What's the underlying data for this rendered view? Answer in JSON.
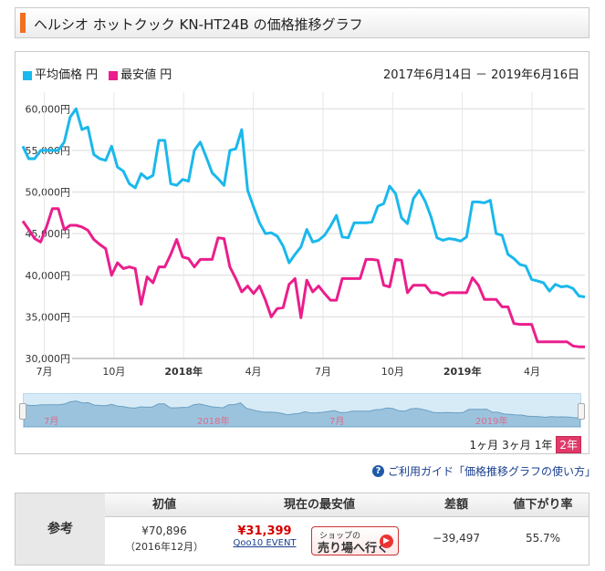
{
  "header": {
    "title": "ヘルシオ ホットクック KN-HT24B の価格推移グラフ"
  },
  "legend": {
    "avg_label": "平均価格 円",
    "min_label": "最安値 円"
  },
  "date_range": "2017年6月14日 － 2019年6月16日",
  "colors": {
    "avg": "#1ab8ec",
    "min": "#ea1e8c",
    "accent": "#f26f21"
  },
  "chart_data": {
    "type": "line",
    "x_ticks": [
      "7月",
      "10月",
      "2018年",
      "4月",
      "7月",
      "10月",
      "2019年",
      "4月"
    ],
    "y_ticks": [
      "60,000円",
      "55,000円",
      "50,000円",
      "45,000円",
      "40,000円",
      "35,000円",
      "30,000円"
    ],
    "ylim": [
      30000,
      62000
    ],
    "grid": true,
    "series": [
      {
        "name": "平均価格",
        "values": [
          55500,
          54000,
          54000,
          55000,
          55000,
          55000,
          55000,
          56000,
          59000,
          60000,
          57500,
          57800,
          54500,
          54000,
          53800,
          55500,
          53000,
          52500,
          51000,
          50500,
          52200,
          51600,
          52000,
          56200,
          56200,
          51000,
          50800,
          51500,
          51300,
          55000,
          56000,
          54200,
          52300,
          51600,
          50800,
          55000,
          55200,
          57500,
          50200,
          48200,
          46300,
          45000,
          45100,
          44700,
          43500,
          41500,
          42500,
          43400,
          45500,
          44000,
          44200,
          44800,
          45900,
          47200,
          44600,
          44500,
          46300,
          46300,
          46300,
          46400,
          48300,
          48600,
          50700,
          49800,
          46900,
          46200,
          49200,
          50200,
          48900,
          47000,
          44500,
          44200,
          44400,
          44300,
          44100,
          44600,
          48800,
          48800,
          48700,
          49000,
          45000,
          44800,
          42500,
          42000,
          41300,
          41100,
          39500,
          39300,
          39100,
          38100,
          38900,
          38600,
          38700,
          38400,
          37500,
          37400
        ]
      },
      {
        "name": "最安値",
        "values": [
          46500,
          45500,
          44400,
          44000,
          45800,
          48000,
          48000,
          45500,
          46000,
          46000,
          45800,
          45400,
          44300,
          43700,
          43200,
          40000,
          41500,
          40800,
          41000,
          40800,
          36500,
          39800,
          39100,
          41000,
          41000,
          42500,
          44300,
          42200,
          42000,
          41000,
          41900,
          41900,
          41900,
          44500,
          44400,
          41000,
          39600,
          38000,
          38700,
          37800,
          38700,
          37000,
          35000,
          36000,
          36100,
          38900,
          39600,
          34900,
          39400,
          38000,
          38700,
          37800,
          37000,
          37000,
          39600,
          39600,
          39600,
          39600,
          41900,
          41900,
          41800,
          38800,
          38600,
          41900,
          41800,
          37900,
          38800,
          38800,
          38800,
          37900,
          37900,
          37600,
          37900,
          37900,
          37900,
          37900,
          39700,
          38800,
          37100,
          37100,
          37100,
          36200,
          36200,
          34200,
          34100,
          34100,
          34100,
          32000,
          32000,
          32000,
          32000,
          32000,
          32000,
          31500,
          31400,
          31400
        ]
      }
    ],
    "navigator_labels": [
      "7月",
      "2018年",
      "7月",
      "2019年"
    ]
  },
  "timespan": {
    "opt1": "1ヶ月",
    "opt2": "3ヶ月",
    "opt3": "1年",
    "opt4": "2年"
  },
  "guide": {
    "icon": "?",
    "text": "ご利用ガイド「価格推移グラフの使い方」"
  },
  "info": {
    "label": "参考",
    "col1_head": "初値",
    "col1_value": "¥70,896",
    "col1_sub": "（2016年12月）",
    "col2_head": "現在の最安値",
    "col2_value": "¥31,399",
    "col2_shop": "Qoo10 EVENT",
    "shop_small": "ショップの",
    "shop_big": "売り場へ行く",
    "shop_arrow": "▶",
    "col3_head": "差額",
    "col3_value": "−39,497",
    "col4_head": "値下がり率",
    "col4_value": "55.7%"
  }
}
